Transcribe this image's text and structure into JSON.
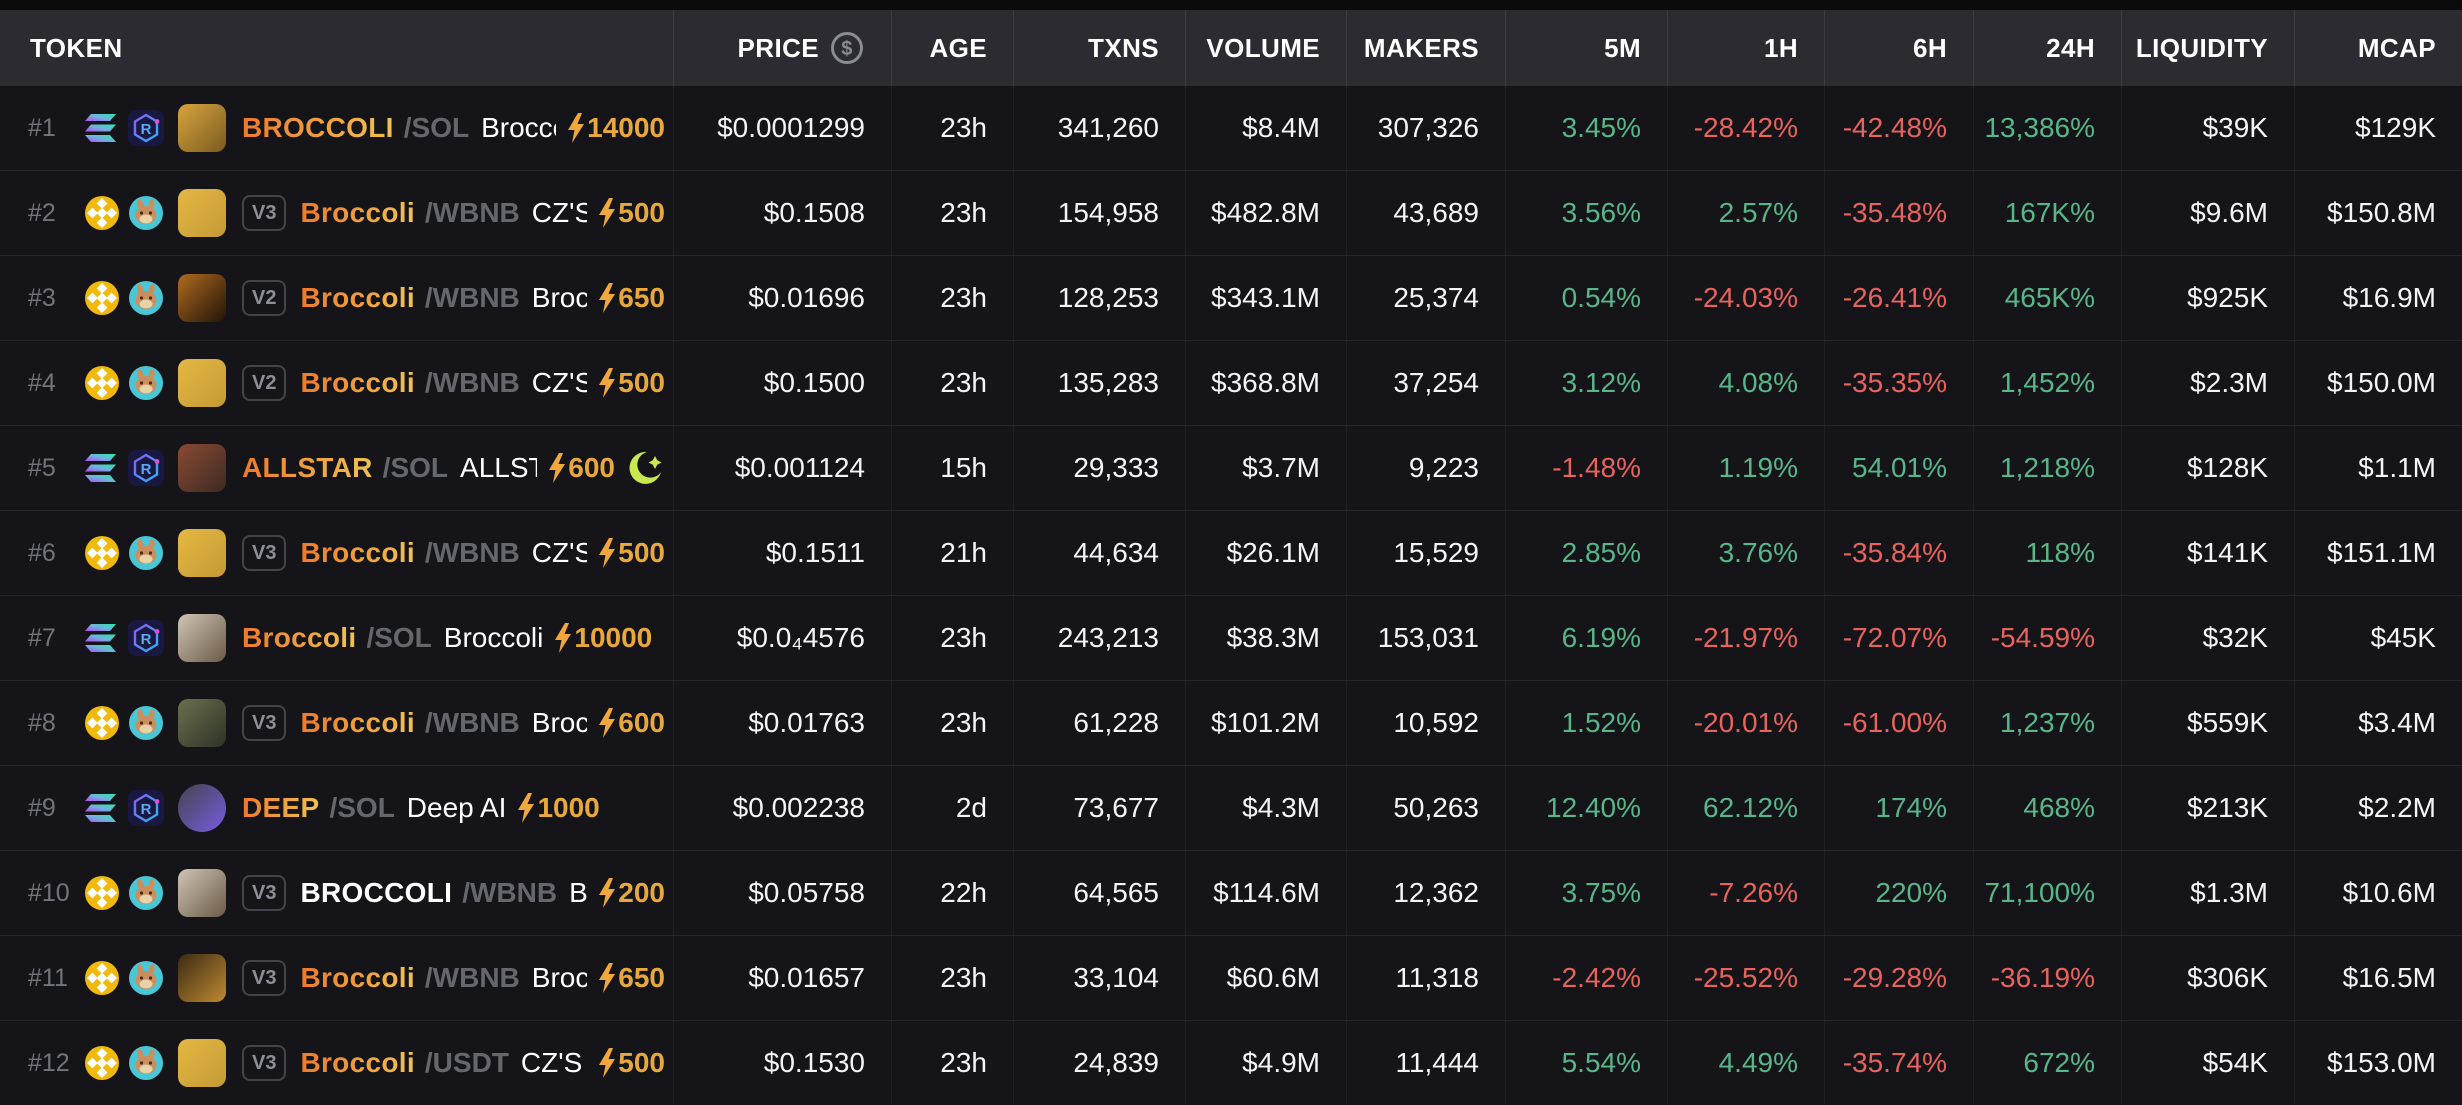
{
  "header": {
    "columns": [
      "TOKEN",
      "PRICE",
      "AGE",
      "TXNS",
      "VOLUME",
      "MAKERS",
      "5M",
      "1H",
      "6H",
      "24H",
      "LIQUIDITY",
      "MCAP"
    ],
    "price_icon": "dollar-coin-icon"
  },
  "colors": {
    "positive": "#58b689",
    "negative": "#e9635e",
    "boost_gold": "#e9a83c",
    "golden_ticker_start": "#ee7a2b",
    "golden_ticker_end": "#f0c252",
    "header_bg": "#2b2b31",
    "row_bg": "#151519",
    "moonshot_green": "#c9e84f"
  },
  "rows": [
    {
      "rank": "#1",
      "chain": "solana",
      "dex": "raydium",
      "avatar": [
        "#d7a53f",
        "#7a5a1e"
      ],
      "avatar_shape": "rounded",
      "badge": "",
      "symbol": "BROCCOLI",
      "golden": true,
      "quote": "/SOL",
      "name": "Broccoli",
      "boost": "14000",
      "moonshot": false,
      "price": "$0.0001299",
      "age": "23h",
      "txns": "341,260",
      "volume": "$8.4M",
      "makers": "307,326",
      "m5": "3.45%",
      "h1": "-28.42%",
      "h6": "-42.48%",
      "h24": "13,386%",
      "liquidity": "$39K",
      "mcap": "$129K"
    },
    {
      "rank": "#2",
      "chain": "bnb",
      "dex": "pancakeswap",
      "avatar": [
        "#e5b843",
        "#c49a35"
      ],
      "avatar_shape": "rounded",
      "badge": "V3",
      "symbol": "Broccoli",
      "golden": true,
      "quote": "/WBNB",
      "name": "CZ'S DO",
      "boost": "500",
      "moonshot": false,
      "price": "$0.1508",
      "age": "23h",
      "txns": "154,958",
      "volume": "$482.8M",
      "makers": "43,689",
      "m5": "3.56%",
      "h1": "2.57%",
      "h6": "-35.48%",
      "h24": "167K%",
      "liquidity": "$9.6M",
      "mcap": "$150.8M"
    },
    {
      "rank": "#3",
      "chain": "bnb",
      "dex": "pancakeswap",
      "avatar": [
        "#b06a20",
        "#201408"
      ],
      "avatar_shape": "rounded",
      "badge": "V2",
      "symbol": "Broccoli",
      "golden": true,
      "quote": "/WBNB",
      "name": "Broccol",
      "boost": "650",
      "moonshot": false,
      "price": "$0.01696",
      "age": "23h",
      "txns": "128,253",
      "volume": "$343.1M",
      "makers": "25,374",
      "m5": "0.54%",
      "h1": "-24.03%",
      "h6": "-26.41%",
      "h24": "465K%",
      "liquidity": "$925K",
      "mcap": "$16.9M"
    },
    {
      "rank": "#4",
      "chain": "bnb",
      "dex": "pancakeswap",
      "avatar": [
        "#e5b843",
        "#c49a35"
      ],
      "avatar_shape": "rounded",
      "badge": "V2",
      "symbol": "Broccoli",
      "golden": true,
      "quote": "/WBNB",
      "name": "CZ'S DO",
      "boost": "500",
      "moonshot": false,
      "price": "$0.1500",
      "age": "23h",
      "txns": "135,283",
      "volume": "$368.8M",
      "makers": "37,254",
      "m5": "3.12%",
      "h1": "4.08%",
      "h6": "-35.35%",
      "h24": "1,452%",
      "liquidity": "$2.3M",
      "mcap": "$150.0M"
    },
    {
      "rank": "#5",
      "chain": "solana",
      "dex": "raydium",
      "avatar": [
        "#8a4a33",
        "#3c2a24"
      ],
      "avatar_shape": "rounded",
      "badge": "",
      "symbol": "ALLSTAR",
      "golden": true,
      "quote": "/SOL",
      "name": "ALLSTAR C",
      "boost": "600",
      "moonshot": true,
      "price": "$0.001124",
      "age": "15h",
      "txns": "29,333",
      "volume": "$3.7M",
      "makers": "9,223",
      "m5": "-1.48%",
      "h1": "1.19%",
      "h6": "54.01%",
      "h24": "1,218%",
      "liquidity": "$128K",
      "mcap": "$1.1M"
    },
    {
      "rank": "#6",
      "chain": "bnb",
      "dex": "pancakeswap",
      "avatar": [
        "#e5b843",
        "#c49a35"
      ],
      "avatar_shape": "rounded",
      "badge": "V3",
      "symbol": "Broccoli",
      "golden": true,
      "quote": "/WBNB",
      "name": "CZ'S DO",
      "boost": "500",
      "moonshot": false,
      "price": "$0.1511",
      "age": "21h",
      "txns": "44,634",
      "volume": "$26.1M",
      "makers": "15,529",
      "m5": "2.85%",
      "h1": "3.76%",
      "h6": "-35.84%",
      "h24": "118%",
      "liquidity": "$141K",
      "mcap": "$151.1M"
    },
    {
      "rank": "#7",
      "chain": "solana",
      "dex": "raydium",
      "avatar": [
        "#cfc4b4",
        "#6b5b47"
      ],
      "avatar_shape": "rounded",
      "badge": "",
      "symbol": "Broccoli",
      "golden": true,
      "quote": "/SOL",
      "name": "Broccoli",
      "boost": "10000",
      "moonshot": false,
      "price": "$0.0₄4576",
      "age": "23h",
      "txns": "243,213",
      "volume": "$38.3M",
      "makers": "153,031",
      "m5": "6.19%",
      "h1": "-21.97%",
      "h6": "-72.07%",
      "h24": "-54.59%",
      "liquidity": "$32K",
      "mcap": "$45K"
    },
    {
      "rank": "#8",
      "chain": "bnb",
      "dex": "pancakeswap",
      "avatar": [
        "#6b6f4e",
        "#2f3326"
      ],
      "avatar_shape": "rounded",
      "badge": "V3",
      "symbol": "Broccoli",
      "golden": true,
      "quote": "/WBNB",
      "name": "Broccol",
      "boost": "600",
      "moonshot": false,
      "price": "$0.01763",
      "age": "23h",
      "txns": "61,228",
      "volume": "$101.2M",
      "makers": "10,592",
      "m5": "1.52%",
      "h1": "-20.01%",
      "h6": "-61.00%",
      "h24": "1,237%",
      "liquidity": "$559K",
      "mcap": "$3.4M"
    },
    {
      "rank": "#9",
      "chain": "solana",
      "dex": "raydium",
      "avatar": [
        "#44444c",
        "#7a5ce0"
      ],
      "avatar_shape": "circle",
      "badge": "",
      "symbol": "DEEP",
      "golden": true,
      "quote": "/SOL",
      "name": "Deep AI",
      "boost": "1000",
      "moonshot": false,
      "price": "$0.002238",
      "age": "2d",
      "txns": "73,677",
      "volume": "$4.3M",
      "makers": "50,263",
      "m5": "12.40%",
      "h1": "62.12%",
      "h6": "174%",
      "h24": "468%",
      "liquidity": "$213K",
      "mcap": "$2.2M"
    },
    {
      "rank": "#10",
      "chain": "bnb",
      "dex": "pancakeswap",
      "avatar": [
        "#cfc4b4",
        "#6b5b47"
      ],
      "avatar_shape": "rounded",
      "badge": "V3",
      "symbol": "BROCCOLI",
      "golden": false,
      "quote": "/WBNB",
      "name": "Brocco",
      "boost": "200",
      "moonshot": false,
      "price": "$0.05758",
      "age": "22h",
      "txns": "64,565",
      "volume": "$114.6M",
      "makers": "12,362",
      "m5": "3.75%",
      "h1": "-7.26%",
      "h6": "220%",
      "h24": "71,100%",
      "liquidity": "$1.3M",
      "mcap": "$10.6M"
    },
    {
      "rank": "#11",
      "chain": "bnb",
      "dex": "pancakeswap",
      "avatar": [
        "#3a2a14",
        "#c08a30"
      ],
      "avatar_shape": "rounded",
      "badge": "V3",
      "symbol": "Broccoli",
      "golden": true,
      "quote": "/WBNB",
      "name": "Broccol",
      "boost": "650",
      "moonshot": false,
      "price": "$0.01657",
      "age": "23h",
      "txns": "33,104",
      "volume": "$60.6M",
      "makers": "11,318",
      "m5": "-2.42%",
      "h1": "-25.52%",
      "h6": "-29.28%",
      "h24": "-36.19%",
      "liquidity": "$306K",
      "mcap": "$16.5M"
    },
    {
      "rank": "#12",
      "chain": "bnb",
      "dex": "pancakeswap",
      "avatar": [
        "#e5b843",
        "#c49a35"
      ],
      "avatar_shape": "rounded",
      "badge": "V3",
      "symbol": "Broccoli",
      "golden": true,
      "quote": "/USDT",
      "name": "CZ'S DOC",
      "boost": "500",
      "moonshot": false,
      "price": "$0.1530",
      "age": "23h",
      "txns": "24,839",
      "volume": "$4.9M",
      "makers": "11,444",
      "m5": "5.54%",
      "h1": "4.49%",
      "h6": "-35.74%",
      "h24": "672%",
      "liquidity": "$54K",
      "mcap": "$153.0M"
    }
  ]
}
